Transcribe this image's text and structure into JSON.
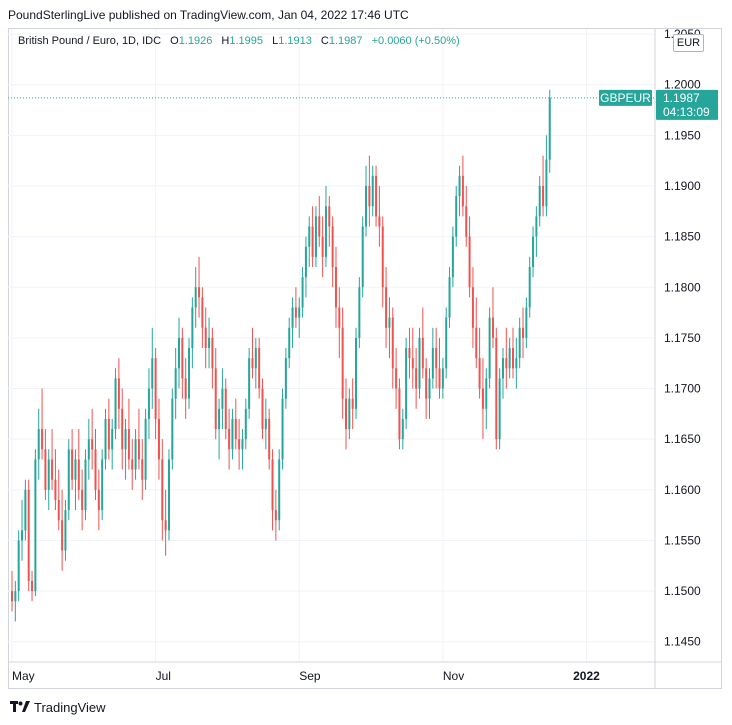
{
  "header": {
    "publisher_line": "PoundSterlingLive published on TradingView.com, Jan 04, 2022 17:46 UTC"
  },
  "legend": {
    "symbol": "British Pound / Euro, 1D, IDC",
    "open_label": "O",
    "open": "1.1926",
    "high_label": "H",
    "high": "1.1995",
    "low_label": "L",
    "low": "1.1913",
    "close_label": "C",
    "close": "1.1987",
    "change": "+0.0060 (+0.50%)"
  },
  "currency_badge": "EUR",
  "price_tag": {
    "symbol": "GBPEUR",
    "price": "1.1987",
    "countdown": "04:13:09",
    "color": "#26a69a"
  },
  "footer": {
    "brand": "TradingView"
  },
  "colors": {
    "up": "#26a69a",
    "down": "#ef5350",
    "grid": "#f0f3fa",
    "axis_text": "#131722"
  },
  "chart_data": {
    "type": "candlestick",
    "title": "British Pound / Euro, 1D, IDC",
    "y_ticks": [
      "1.1450",
      "1.1500",
      "1.1550",
      "1.1600",
      "1.1650",
      "1.1700",
      "1.1750",
      "1.1800",
      "1.1850",
      "1.1900",
      "1.1950",
      "1.2000",
      "1.2050"
    ],
    "ylim": [
      1.143,
      1.2055
    ],
    "x_ticks": [
      {
        "label": "May",
        "index": 0
      },
      {
        "label": "Jul",
        "index": 43
      },
      {
        "label": "Sep",
        "index": 86
      },
      {
        "label": "Nov",
        "index": 129
      },
      {
        "label": "2022",
        "index": 172
      }
    ],
    "last_close": 1.1987,
    "grid": true,
    "ohlc": [
      [
        1.15,
        1.152,
        1.148,
        1.149
      ],
      [
        1.149,
        1.151,
        1.147,
        1.15
      ],
      [
        1.15,
        1.156,
        1.149,
        1.155
      ],
      [
        1.155,
        1.159,
        1.153,
        1.156
      ],
      [
        1.156,
        1.161,
        1.155,
        1.16
      ],
      [
        1.16,
        1.161,
        1.15,
        1.151
      ],
      [
        1.151,
        1.152,
        1.149,
        1.15
      ],
      [
        1.15,
        1.164,
        1.1495,
        1.163
      ],
      [
        1.163,
        1.168,
        1.161,
        1.166
      ],
      [
        1.166,
        1.17,
        1.163,
        1.164
      ],
      [
        1.164,
        1.166,
        1.159,
        1.16
      ],
      [
        1.16,
        1.164,
        1.158,
        1.163
      ],
      [
        1.163,
        1.166,
        1.16,
        1.161
      ],
      [
        1.161,
        1.164,
        1.158,
        1.159
      ],
      [
        1.159,
        1.162,
        1.156,
        1.157
      ],
      [
        1.157,
        1.16,
        1.152,
        1.154
      ],
      [
        1.154,
        1.159,
        1.153,
        1.158
      ],
      [
        1.158,
        1.165,
        1.157,
        1.164
      ],
      [
        1.164,
        1.166,
        1.16,
        1.161
      ],
      [
        1.161,
        1.164,
        1.158,
        1.163
      ],
      [
        1.163,
        1.166,
        1.159,
        1.16
      ],
      [
        1.16,
        1.162,
        1.156,
        1.158
      ],
      [
        1.158,
        1.164,
        1.157,
        1.163
      ],
      [
        1.163,
        1.167,
        1.161,
        1.165
      ],
      [
        1.165,
        1.168,
        1.162,
        1.164
      ],
      [
        1.164,
        1.166,
        1.159,
        1.16
      ],
      [
        1.16,
        1.162,
        1.156,
        1.158
      ],
      [
        1.158,
        1.164,
        1.157,
        1.163
      ],
      [
        1.163,
        1.168,
        1.162,
        1.167
      ],
      [
        1.167,
        1.169,
        1.163,
        1.164
      ],
      [
        1.164,
        1.167,
        1.162,
        1.166
      ],
      [
        1.166,
        1.172,
        1.165,
        1.171
      ],
      [
        1.171,
        1.173,
        1.166,
        1.168
      ],
      [
        1.168,
        1.17,
        1.162,
        1.164
      ],
      [
        1.164,
        1.167,
        1.161,
        1.166
      ],
      [
        1.166,
        1.169,
        1.162,
        1.163
      ],
      [
        1.163,
        1.165,
        1.16,
        1.162
      ],
      [
        1.162,
        1.166,
        1.161,
        1.165
      ],
      [
        1.165,
        1.168,
        1.162,
        1.163
      ],
      [
        1.163,
        1.165,
        1.159,
        1.161
      ],
      [
        1.161,
        1.168,
        1.16,
        1.167
      ],
      [
        1.167,
        1.172,
        1.165,
        1.17
      ],
      [
        1.17,
        1.176,
        1.168,
        1.173
      ],
      [
        1.173,
        1.174,
        1.165,
        1.167
      ],
      [
        1.167,
        1.169,
        1.161,
        1.163
      ],
      [
        1.163,
        1.165,
        1.155,
        1.157
      ],
      [
        1.157,
        1.16,
        1.1535,
        1.156
      ],
      [
        1.156,
        1.164,
        1.155,
        1.163
      ],
      [
        1.163,
        1.17,
        1.162,
        1.169
      ],
      [
        1.169,
        1.174,
        1.167,
        1.172
      ],
      [
        1.172,
        1.177,
        1.17,
        1.175
      ],
      [
        1.175,
        1.176,
        1.169,
        1.171
      ],
      [
        1.171,
        1.173,
        1.167,
        1.169
      ],
      [
        1.169,
        1.175,
        1.168,
        1.174
      ],
      [
        1.174,
        1.179,
        1.172,
        1.178
      ],
      [
        1.178,
        1.182,
        1.176,
        1.18
      ],
      [
        1.18,
        1.183,
        1.177,
        1.179
      ],
      [
        1.179,
        1.18,
        1.174,
        1.176
      ],
      [
        1.176,
        1.178,
        1.172,
        1.174
      ],
      [
        1.174,
        1.177,
        1.172,
        1.175
      ],
      [
        1.175,
        1.176,
        1.17,
        1.172
      ],
      [
        1.172,
        1.174,
        1.165,
        1.166
      ],
      [
        1.166,
        1.169,
        1.163,
        1.168
      ],
      [
        1.168,
        1.172,
        1.166,
        1.17
      ],
      [
        1.17,
        1.171,
        1.165,
        1.166
      ],
      [
        1.166,
        1.168,
        1.162,
        1.164
      ],
      [
        1.164,
        1.168,
        1.163,
        1.167
      ],
      [
        1.167,
        1.169,
        1.164,
        1.165
      ],
      [
        1.165,
        1.167,
        1.162,
        1.164
      ],
      [
        1.164,
        1.166,
        1.162,
        1.165
      ],
      [
        1.165,
        1.169,
        1.164,
        1.168
      ],
      [
        1.168,
        1.174,
        1.167,
        1.173
      ],
      [
        1.173,
        1.176,
        1.171,
        1.172
      ],
      [
        1.172,
        1.175,
        1.17,
        1.174
      ],
      [
        1.174,
        1.175,
        1.169,
        1.17
      ],
      [
        1.17,
        1.171,
        1.165,
        1.166
      ],
      [
        1.166,
        1.169,
        1.164,
        1.167
      ],
      [
        1.167,
        1.168,
        1.162,
        1.163
      ],
      [
        1.163,
        1.164,
        1.156,
        1.158
      ],
      [
        1.158,
        1.16,
        1.155,
        1.157
      ],
      [
        1.157,
        1.164,
        1.156,
        1.163
      ],
      [
        1.163,
        1.17,
        1.162,
        1.169
      ],
      [
        1.169,
        1.174,
        1.168,
        1.173
      ],
      [
        1.173,
        1.177,
        1.172,
        1.176
      ],
      [
        1.176,
        1.179,
        1.174,
        1.178
      ],
      [
        1.178,
        1.18,
        1.176,
        1.177
      ],
      [
        1.177,
        1.179,
        1.175,
        1.178
      ],
      [
        1.178,
        1.182,
        1.177,
        1.181
      ],
      [
        1.181,
        1.185,
        1.179,
        1.184
      ],
      [
        1.184,
        1.187,
        1.182,
        1.186
      ],
      [
        1.186,
        1.188,
        1.182,
        1.183
      ],
      [
        1.183,
        1.188,
        1.182,
        1.187
      ],
      [
        1.187,
        1.189,
        1.184,
        1.185
      ],
      [
        1.185,
        1.187,
        1.181,
        1.183
      ],
      [
        1.183,
        1.19,
        1.182,
        1.188
      ],
      [
        1.188,
        1.189,
        1.184,
        1.186
      ],
      [
        1.186,
        1.187,
        1.18,
        1.182
      ],
      [
        1.182,
        1.184,
        1.176,
        1.178
      ],
      [
        1.178,
        1.18,
        1.173,
        1.176
      ],
      [
        1.176,
        1.178,
        1.167,
        1.169
      ],
      [
        1.169,
        1.171,
        1.164,
        1.166
      ],
      [
        1.166,
        1.17,
        1.165,
        1.169
      ],
      [
        1.169,
        1.171,
        1.166,
        1.168
      ],
      [
        1.168,
        1.176,
        1.167,
        1.175
      ],
      [
        1.175,
        1.181,
        1.174,
        1.18
      ],
      [
        1.18,
        1.187,
        1.179,
        1.186
      ],
      [
        1.186,
        1.192,
        1.185,
        1.19
      ],
      [
        1.19,
        1.193,
        1.186,
        1.188
      ],
      [
        1.188,
        1.192,
        1.187,
        1.191
      ],
      [
        1.191,
        1.192,
        1.186,
        1.187
      ],
      [
        1.187,
        1.19,
        1.184,
        1.186
      ],
      [
        1.186,
        1.187,
        1.178,
        1.18
      ],
      [
        1.18,
        1.182,
        1.174,
        1.176
      ],
      [
        1.176,
        1.179,
        1.173,
        1.177
      ],
      [
        1.177,
        1.178,
        1.17,
        1.172
      ],
      [
        1.172,
        1.174,
        1.168,
        1.17
      ],
      [
        1.17,
        1.171,
        1.164,
        1.165
      ],
      [
        1.165,
        1.168,
        1.164,
        1.167
      ],
      [
        1.167,
        1.175,
        1.166,
        1.174
      ],
      [
        1.174,
        1.176,
        1.171,
        1.173
      ],
      [
        1.173,
        1.176,
        1.17,
        1.172
      ],
      [
        1.172,
        1.174,
        1.168,
        1.17
      ],
      [
        1.17,
        1.176,
        1.169,
        1.175
      ],
      [
        1.175,
        1.178,
        1.171,
        1.172
      ],
      [
        1.172,
        1.173,
        1.167,
        1.169
      ],
      [
        1.169,
        1.172,
        1.167,
        1.171
      ],
      [
        1.171,
        1.176,
        1.17,
        1.174
      ],
      [
        1.174,
        1.176,
        1.17,
        1.172
      ],
      [
        1.172,
        1.175,
        1.169,
        1.17
      ],
      [
        1.17,
        1.173,
        1.169,
        1.172
      ],
      [
        1.172,
        1.178,
        1.171,
        1.177
      ],
      [
        1.177,
        1.182,
        1.176,
        1.181
      ],
      [
        1.181,
        1.186,
        1.18,
        1.185
      ],
      [
        1.185,
        1.19,
        1.184,
        1.189
      ],
      [
        1.189,
        1.192,
        1.187,
        1.191
      ],
      [
        1.191,
        1.193,
        1.187,
        1.188
      ],
      [
        1.188,
        1.19,
        1.184,
        1.185
      ],
      [
        1.185,
        1.187,
        1.179,
        1.18
      ],
      [
        1.18,
        1.182,
        1.174,
        1.176
      ],
      [
        1.176,
        1.179,
        1.172,
        1.173
      ],
      [
        1.173,
        1.176,
        1.169,
        1.17
      ],
      [
        1.17,
        1.173,
        1.165,
        1.168
      ],
      [
        1.168,
        1.172,
        1.166,
        1.171
      ],
      [
        1.171,
        1.178,
        1.17,
        1.177
      ],
      [
        1.177,
        1.18,
        1.174,
        1.175
      ],
      [
        1.175,
        1.176,
        1.164,
        1.165
      ],
      [
        1.165,
        1.172,
        1.164,
        1.171
      ],
      [
        1.171,
        1.174,
        1.169,
        1.173
      ],
      [
        1.173,
        1.176,
        1.17,
        1.172
      ],
      [
        1.172,
        1.175,
        1.171,
        1.174
      ],
      [
        1.174,
        1.176,
        1.171,
        1.172
      ],
      [
        1.172,
        1.175,
        1.17,
        1.173
      ],
      [
        1.173,
        1.177,
        1.172,
        1.176
      ],
      [
        1.176,
        1.178,
        1.173,
        1.175
      ],
      [
        1.175,
        1.179,
        1.174,
        1.178
      ],
      [
        1.178,
        1.183,
        1.177,
        1.182
      ],
      [
        1.182,
        1.186,
        1.181,
        1.185
      ],
      [
        1.185,
        1.188,
        1.183,
        1.187
      ],
      [
        1.187,
        1.191,
        1.186,
        1.19
      ],
      [
        1.19,
        1.193,
        1.187,
        1.188
      ],
      [
        1.188,
        1.195,
        1.187,
        1.1926
      ],
      [
        1.1926,
        1.1995,
        1.1913,
        1.1987
      ]
    ]
  }
}
